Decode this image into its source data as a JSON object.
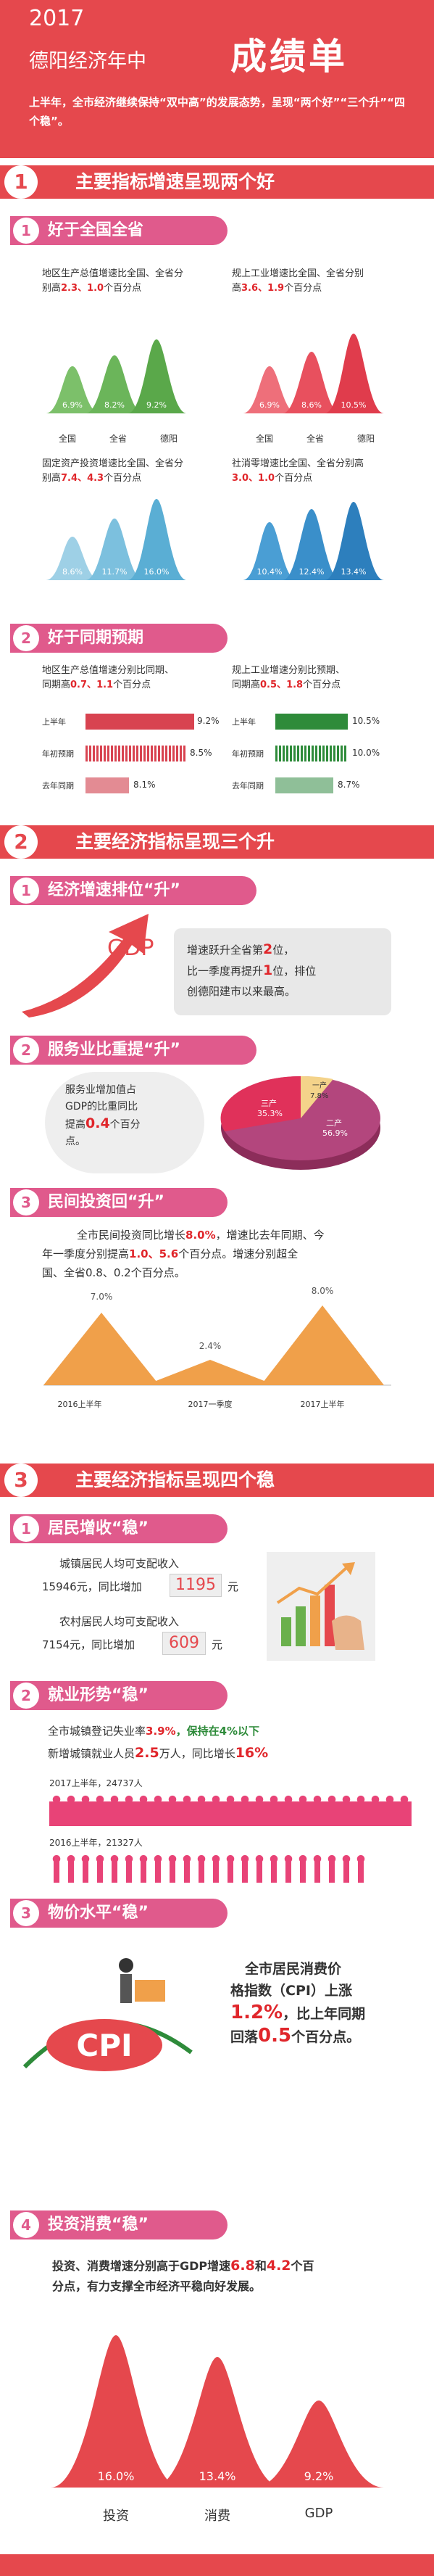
{
  "header": {
    "year": "2017",
    "subtitle": "德阳经济年中",
    "big_title": "成绩单",
    "desc": "上半年，全市经济继续保持“双中高”的发展态势，呈现“两个好”“三个升”“四个稳”。"
  },
  "sec1": {
    "num": "1",
    "title": "主要指标增速呈现两个好"
  },
  "sub1_1": {
    "num": "1",
    "title": "好于全国全省"
  },
  "p1": {
    "line1": "地区生产总值增速比全国、全省分",
    "line2a": "别高",
    "v1": "2.3",
    "sep": "、",
    "v2": "1.0",
    "line2b": "个百分点",
    "labels": [
      "6.9%",
      "8.2%",
      "9.2%"
    ],
    "axis": [
      "全国",
      "全省",
      "德阳"
    ]
  },
  "p2": {
    "line1": "规上工业增速比全国、全省分别",
    "line2a": "高",
    "v1": "3.6",
    "sep": "、",
    "v2": "1.9",
    "line2b": "个百分点",
    "labels": [
      "6.9%",
      "8.6%",
      "10.5%"
    ],
    "axis": [
      "全国",
      "全省",
      "德阳"
    ]
  },
  "p3": {
    "line1": "固定资产投资增速比全国、全省分",
    "line2a": "别高",
    "v1": "7.4",
    "sep": "、",
    "v2": "4.3",
    "line2b": "个百分点",
    "labels": [
      "8.6%",
      "11.7%",
      "16.0%"
    ],
    "axis": [
      "全国",
      "全省",
      "德阳"
    ]
  },
  "p4": {
    "line1": "社消零增速比全国、全省分别高",
    "line2a": "",
    "v1": "3.0",
    "sep": "、",
    "v2": "1.0",
    "line2b": "个百分点",
    "labels": [
      "10.4%",
      "12.4%",
      "13.4%"
    ],
    "axis": [
      "全国",
      "全省",
      "德阳"
    ]
  },
  "sub1_2": {
    "num": "2",
    "title": "好于同期预期"
  },
  "e1": {
    "line1": "地区生产总值增速分别比同期、",
    "line2a": "同期高",
    "v1": "0.7",
    "sep": "、",
    "v2": "1.1",
    "line2b": "个百分点",
    "rows": [
      {
        "name": "上半年",
        "val": "9.2%"
      },
      {
        "name": "年初预期",
        "val": "8.5%"
      },
      {
        "name": "去年同期",
        "val": "8.1%"
      }
    ]
  },
  "e2": {
    "line1": "规上工业增速分别比预期、",
    "line2a": "同期高",
    "v1": "0.5",
    "sep": "、",
    "v2": "1.8",
    "line2b": "个百分点",
    "rows": [
      {
        "name": "上半年",
        "val": "10.5%"
      },
      {
        "name": "年初预期",
        "val": "10.0%"
      },
      {
        "name": "去年同期",
        "val": "8.7%"
      }
    ]
  },
  "sec2": {
    "num": "2",
    "title": "主要经济指标呈现三个升"
  },
  "sub2_1": {
    "num": "1",
    "title": "经济增速排位“升”"
  },
  "gdp_rank": {
    "gdp": "GDP",
    "t1": "增速跃升全省第",
    "v1": "2",
    "t2": "位，",
    "t3": "比一季度再提升",
    "v2": "1",
    "t4": "位，排位",
    "t5": "创德阳建市以来最高。"
  },
  "sub2_2": {
    "num": "2",
    "title": "服务业比重提“升”"
  },
  "service": {
    "t1": "服务业增加值占",
    "t2": "GDP的比重同比",
    "t3": "提高",
    "v": "0.4",
    "t4": "个百分",
    "t5": "点。",
    "pie": [
      {
        "name": "一产",
        "val": "7.8%"
      },
      {
        "name": "二产",
        "val": "56.9%"
      },
      {
        "name": "三产",
        "val": "35.3%"
      }
    ]
  },
  "sub2_3": {
    "num": "3",
    "title": "民间投资回“升”"
  },
  "private": {
    "t1": "全市民间投资同比增长",
    "v1": "8.0%",
    "t2": "，增速比去年同期、今",
    "t3": "年一季度分别提高",
    "v2": "1.0",
    "sep": "、",
    "v3": "5.6",
    "t4": "个百分点。增速分别超全",
    "t5": "国、全省0.8、0.2个百分点。",
    "labels": [
      "7.0%",
      "2.4%",
      "8.0%"
    ],
    "axis": [
      "2016上半年",
      "2017一季度",
      "2017上半年"
    ]
  },
  "sec3": {
    "num": "3",
    "title": "主要经济指标呈现四个稳"
  },
  "sub3_1": {
    "num": "1",
    "title": "居民增收“稳”"
  },
  "income": {
    "urban_label": "城镇居民人均可支配收入",
    "urban_val": "15946元，同比增加",
    "urban_inc": "1195",
    "unit": "元",
    "rural_label": "农村居民人均可支配收入",
    "rural_val": "7154元，同比增加",
    "rural_inc": "609"
  },
  "sub3_2": {
    "num": "2",
    "title": "就业形势“稳”"
  },
  "employ": {
    "t1": "全市城镇登记失业率",
    "v1": "3.9%",
    "t2": "，保持在4%以下",
    "t3": "新增城镇就业人员",
    "v2": "2.5",
    "t4": "万人，同比增长",
    "v3": "16%",
    "y1": "2017上半年，24737人",
    "y2": "2016上半年，21327人"
  },
  "sub3_3": {
    "num": "3",
    "title": "物价水平“稳”"
  },
  "cpi": {
    "t1": "全市居民消费价",
    "t2": "格指数（CPI）上涨",
    "v1": "1.2%",
    "t3": "，比上年同期",
    "t4": "回落",
    "v2": "0.5",
    "t5": "个百分点。",
    "logo": "CPI"
  },
  "sub3_4": {
    "num": "4",
    "title": "投资消费“稳”"
  },
  "invest": {
    "t1": "投资、消费增速分别高于GDP增速",
    "v1": "6.8",
    "t2": "和",
    "v2": "4.2",
    "t3": "个百",
    "t4": "分点，有力支撑全市经济平稳向好发展。",
    "labels": [
      "16.0%",
      "13.4%",
      "9.2%"
    ],
    "axis": [
      "投资",
      "消费",
      "GDP"
    ]
  }
}
